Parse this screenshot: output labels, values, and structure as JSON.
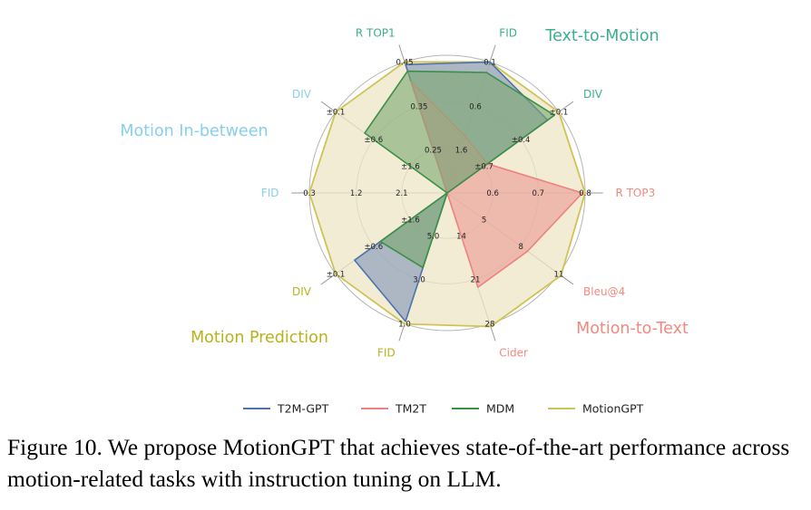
{
  "chart_data": {
    "type": "radar",
    "title": "",
    "tasks": [
      {
        "name": "Text-to-Motion",
        "color": "#3cb08e"
      },
      {
        "name": "Motion-to-Text",
        "color": "#f08a80"
      },
      {
        "name": "Motion Prediction",
        "color": "#b8b21c"
      },
      {
        "name": "Motion In-between",
        "color": "#87cfee"
      }
    ],
    "axes": [
      {
        "label": "R TOP1",
        "task": "Text-to-Motion",
        "ticks": [
          "0.25",
          "0.35",
          "0.45"
        ]
      },
      {
        "label": "FID",
        "task": "Text-to-Motion",
        "ticks": [
          "1.6",
          "0.6",
          "0.1"
        ]
      },
      {
        "label": "DIV",
        "task": "Text-to-Motion",
        "ticks": [
          "±0.7",
          "±0.4",
          "±0.1"
        ]
      },
      {
        "label": "R TOP3",
        "task": "Motion-to-Text",
        "ticks": [
          "0.6",
          "0.7",
          "0.8"
        ]
      },
      {
        "label": "Bleu@4",
        "task": "Motion-to-Text",
        "ticks": [
          "5",
          "8",
          "11"
        ]
      },
      {
        "label": "Cider",
        "task": "Motion-to-Text",
        "ticks": [
          "14",
          "21",
          "28"
        ]
      },
      {
        "label": "FID",
        "task": "Motion Prediction",
        "ticks": [
          "5.0",
          "3.0",
          "1.0"
        ]
      },
      {
        "label": "DIV",
        "task": "Motion Prediction",
        "ticks": [
          "±1.6",
          "±0.6",
          "±0.1"
        ]
      },
      {
        "label": "FID",
        "task": "Motion In-between",
        "ticks": [
          "2.1",
          "1.2",
          "0.3"
        ]
      },
      {
        "label": "DIV",
        "task": "Motion In-between",
        "ticks": [
          "±1.6",
          "±0.6",
          "±0.1"
        ]
      }
    ],
    "range": [
      0,
      1
    ],
    "series": [
      {
        "name": "T2M-GPT",
        "color": "#4c72b0",
        "fill": "#7f94b8",
        "values": [
          0.98,
          1.0,
          0.9,
          0,
          0,
          0,
          0.98,
          0.83,
          0,
          0
        ]
      },
      {
        "name": "TM2T",
        "color": "#ef8080",
        "fill": "#ec9a94",
        "values": [
          0.85,
          0.43,
          0.36,
          0.98,
          0.72,
          0.72,
          0,
          0,
          0,
          0
        ]
      },
      {
        "name": "MDM",
        "color": "#3a8f46",
        "fill": "#7ba86f",
        "values": [
          0.93,
          0.92,
          0.96,
          0,
          0,
          0,
          0.57,
          0.6,
          0,
          0.74
        ]
      },
      {
        "name": "MotionGPT",
        "color": "#cfc353",
        "fill": "#efe6c6",
        "values": [
          1.0,
          1.0,
          1.0,
          1.0,
          1.02,
          1.02,
          1.0,
          1.0,
          1.0,
          1.0
        ]
      }
    ]
  },
  "caption": "Figure 10. We propose MotionGPT that achieves state-of-the-art performance across motion-related tasks with instruction tuning on LLM."
}
